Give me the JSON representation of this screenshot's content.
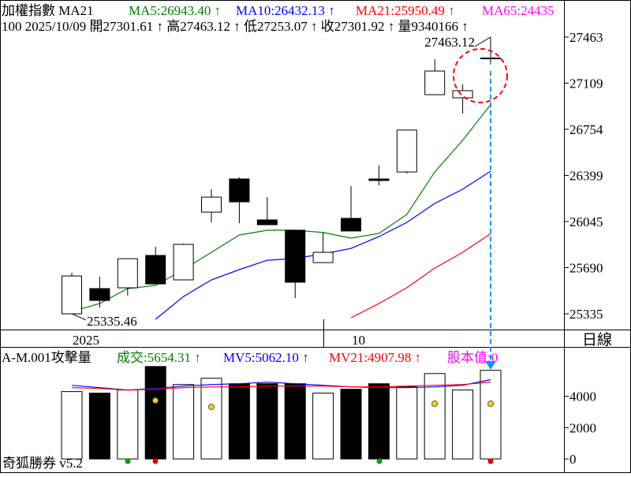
{
  "chart_data": [
    {
      "type": "candlestick",
      "title_items": [
        {
          "text": "加權指數 MA21",
          "color": "#000000"
        },
        {
          "text": "MA5:26943.40 ↑",
          "color": "#008000"
        },
        {
          "text": "MA10:26432.13 ↑",
          "color": "#0000ff"
        },
        {
          "text": "MA21:25950.49 ↑",
          "color": "#ff0000"
        },
        {
          "text": "MA65:24435",
          "color": "#ff00ff"
        }
      ],
      "subtitle": "100 2025/10/09 開27301.61 ↑ 高27463.12 ↑ 低27253.07 ↑ 收27301.92 ↑ 量9340166 ↑",
      "categories": [
        "2025",
        null,
        null,
        null,
        null,
        null,
        null,
        null,
        null,
        null,
        "10",
        null,
        null,
        null,
        null,
        null
      ],
      "open": [
        25335,
        25529,
        25535,
        25784,
        25596,
        26117,
        26372,
        26057,
        25978,
        25729,
        26069,
        26372,
        26426,
        27020,
        26996,
        27301.61
      ],
      "high": [
        25650,
        25620,
        25759,
        25850,
        25875,
        26293,
        26384,
        26232,
        25978,
        25960,
        26317,
        26475,
        26748,
        27293,
        27099,
        27463.12
      ],
      "low": [
        25335.46,
        25384,
        25475,
        25565,
        25596,
        26038,
        26032,
        26020,
        25456,
        25729,
        25972,
        26323,
        26414,
        27020,
        26875,
        27253.07
      ],
      "close": [
        25626,
        25438,
        25759,
        25565,
        25869,
        26232,
        26196,
        26020,
        25578,
        25808,
        25972,
        26360,
        26748,
        27202,
        27051,
        27301.92
      ],
      "up_color": "#ffffff",
      "down_color": "#000000",
      "series": [
        {
          "color": "#008000",
          "values": [
            25353,
            25414,
            25529,
            25553,
            25675,
            25808,
            25941,
            25978,
            25978,
            25960,
            25917,
            25953,
            26099,
            26426,
            26669,
            26943.4
          ]
        },
        {
          "color": "#0000ff",
          "values": [
            null,
            null,
            null,
            25293,
            25468,
            25596,
            25675,
            25747,
            25760,
            25796,
            25838,
            25929,
            26038,
            26184,
            26293,
            26432.13
          ]
        },
        {
          "color": "#ff0000",
          "values": [
            null,
            null,
            null,
            null,
            null,
            null,
            null,
            null,
            null,
            null,
            25305,
            25414,
            25535,
            25687,
            25808,
            25950.49
          ]
        }
      ],
      "ylim": [
        25214,
        27748
      ],
      "yticks": [
        27463,
        27109,
        26754,
        26399,
        26045,
        25690,
        25335
      ],
      "annotations": [
        "27463.12",
        "25335.46"
      ]
    },
    {
      "type": "bar",
      "title_items": [
        {
          "text": "A-M.001攻擊量",
          "color": "#000000"
        },
        {
          "text": "成交:5654.31 ↑",
          "color": "#008000"
        },
        {
          "text": "MV5:5062.10 ↑",
          "color": "#0000ff"
        },
        {
          "text": "MV21:4907.98 ↑",
          "color": "#ff0000"
        },
        {
          "text": "股本值:0",
          "color": "#ff00ff"
        }
      ],
      "values": [
        4300,
        4200,
        4400,
        5900,
        4750,
        5150,
        4800,
        4800,
        4800,
        4200,
        4450,
        4800,
        4600,
        5450,
        4400,
        5654.31
      ],
      "series": [
        {
          "color": "#0000ff",
          "values": [
            4700,
            4550,
            4400,
            4500,
            4650,
            4750,
            4800,
            4900,
            4800,
            4700,
            4600,
            4550,
            4550,
            4600,
            4700,
            5062.1
          ]
        },
        {
          "color": "#ff0000",
          "values": [
            4550,
            4500,
            4400,
            4450,
            4550,
            4600,
            4600,
            4650,
            4650,
            4650,
            4600,
            4600,
            4650,
            4700,
            4750,
            4907.98
          ]
        }
      ],
      "ylim": [
        -800,
        7100
      ],
      "yticks": [
        4000,
        2000,
        0
      ]
    }
  ],
  "footer": {
    "period": "日線",
    "brand": "奇狐勝券 v5.2"
  }
}
